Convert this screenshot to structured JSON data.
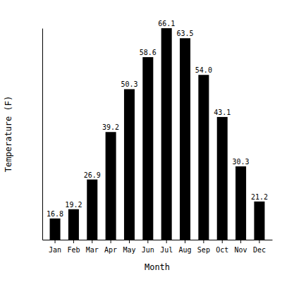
{
  "chart_data": {
    "type": "bar",
    "x_label": "Month",
    "y_label": "Temperature (F)",
    "categories": [
      "Jan",
      "Feb",
      "Mar",
      "Apr",
      "May",
      "Jun",
      "Jul",
      "Aug",
      "Sep",
      "Oct",
      "Nov",
      "Dec"
    ],
    "values": [
      16.8,
      19.2,
      26.9,
      39.2,
      50.3,
      58.6,
      66.1,
      63.5,
      54.0,
      43.1,
      30.3,
      21.2
    ],
    "value_labels": [
      "16.8",
      "19.2",
      "26.9",
      "39.2",
      "50.3",
      "58.6",
      "66.1",
      "63.5",
      "54.0",
      "43.1",
      "30.3",
      "21.2"
    ],
    "color": "#000000",
    "ylim": [
      11.3,
      66.1
    ],
    "yticks": [],
    "grid": false,
    "data_labels": true,
    "tick_labels": "x"
  }
}
